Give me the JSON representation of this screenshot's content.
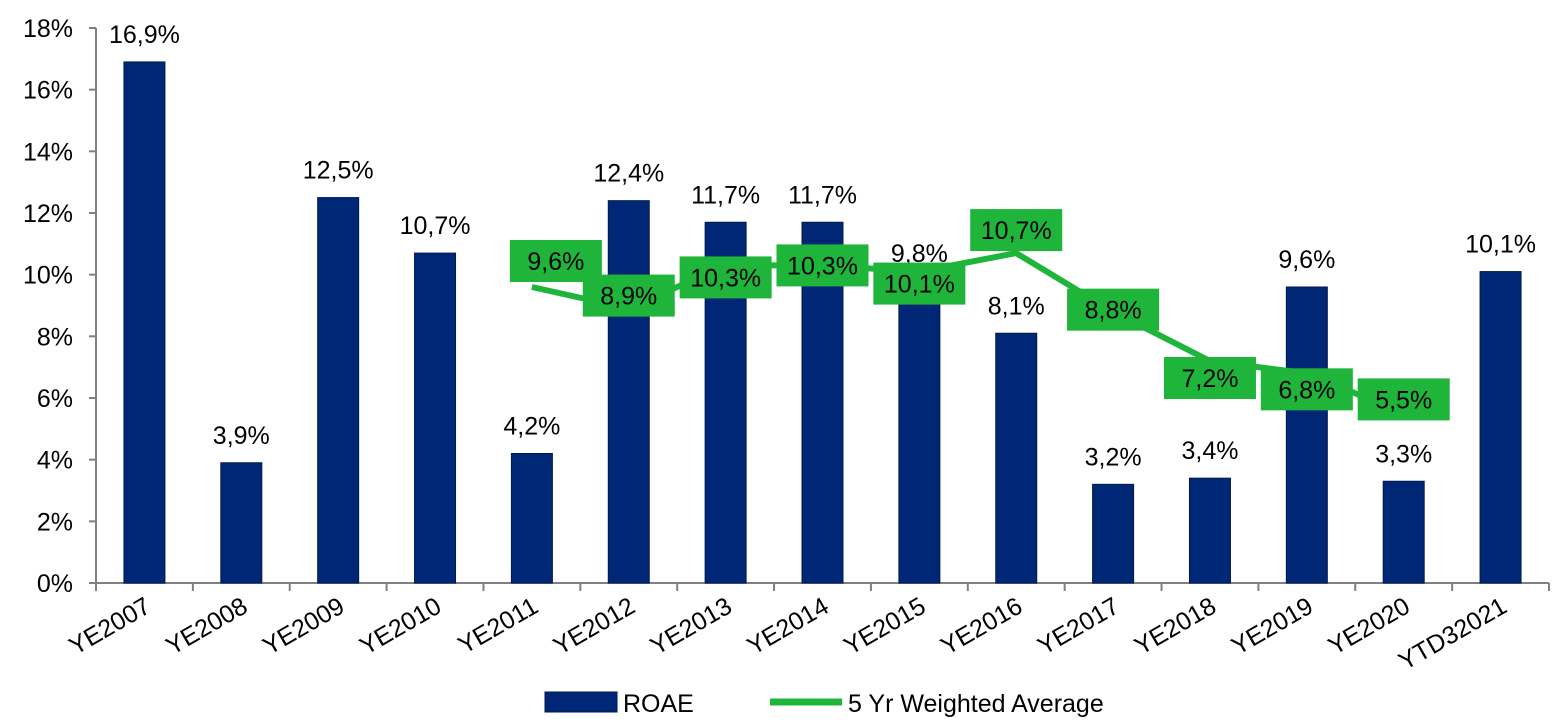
{
  "chart_data": {
    "type": "bar",
    "categories": [
      "YE2007",
      "YE2008",
      "YE2009",
      "YE2010",
      "YE2011",
      "YE2012",
      "YE2013",
      "YE2014",
      "YE2015",
      "YE2016",
      "YE2017",
      "YE2018",
      "YE2019",
      "YE2020",
      "YTD32021"
    ],
    "series": [
      {
        "name": "ROAE",
        "type": "bar",
        "color": "#002776",
        "values": [
          16.9,
          3.9,
          12.5,
          10.7,
          4.2,
          12.4,
          11.7,
          11.7,
          9.8,
          8.1,
          3.2,
          3.4,
          9.6,
          3.3,
          10.1
        ],
        "labels": [
          "16,9%",
          "3,9%",
          "12,5%",
          "10,7%",
          "4,2%",
          "12,4%",
          "11,7%",
          "11,7%",
          "9,8%",
          "8,1%",
          "3,2%",
          "3,4%",
          "9,6%",
          "3,3%",
          "10,1%"
        ]
      },
      {
        "name": "5 Yr Weighted Average",
        "type": "line",
        "color": "#1eb53a",
        "values": [
          null,
          null,
          null,
          null,
          9.6,
          8.9,
          10.3,
          10.3,
          10.1,
          10.7,
          8.8,
          7.2,
          6.8,
          5.5,
          null
        ],
        "labels": [
          null,
          null,
          null,
          null,
          "9,6%",
          "8,9%",
          "10,3%",
          "10,3%",
          "10,1%",
          "10,7%",
          "8,8%",
          "7,2%",
          "6,8%",
          "5,5%",
          null
        ]
      }
    ],
    "yticks": [
      "0%",
      "2%",
      "4%",
      "6%",
      "8%",
      "10%",
      "12%",
      "14%",
      "16%",
      "18%"
    ],
    "ylim": [
      0,
      18
    ],
    "ystep": 2,
    "legend_position": "bottom",
    "grid": false
  }
}
